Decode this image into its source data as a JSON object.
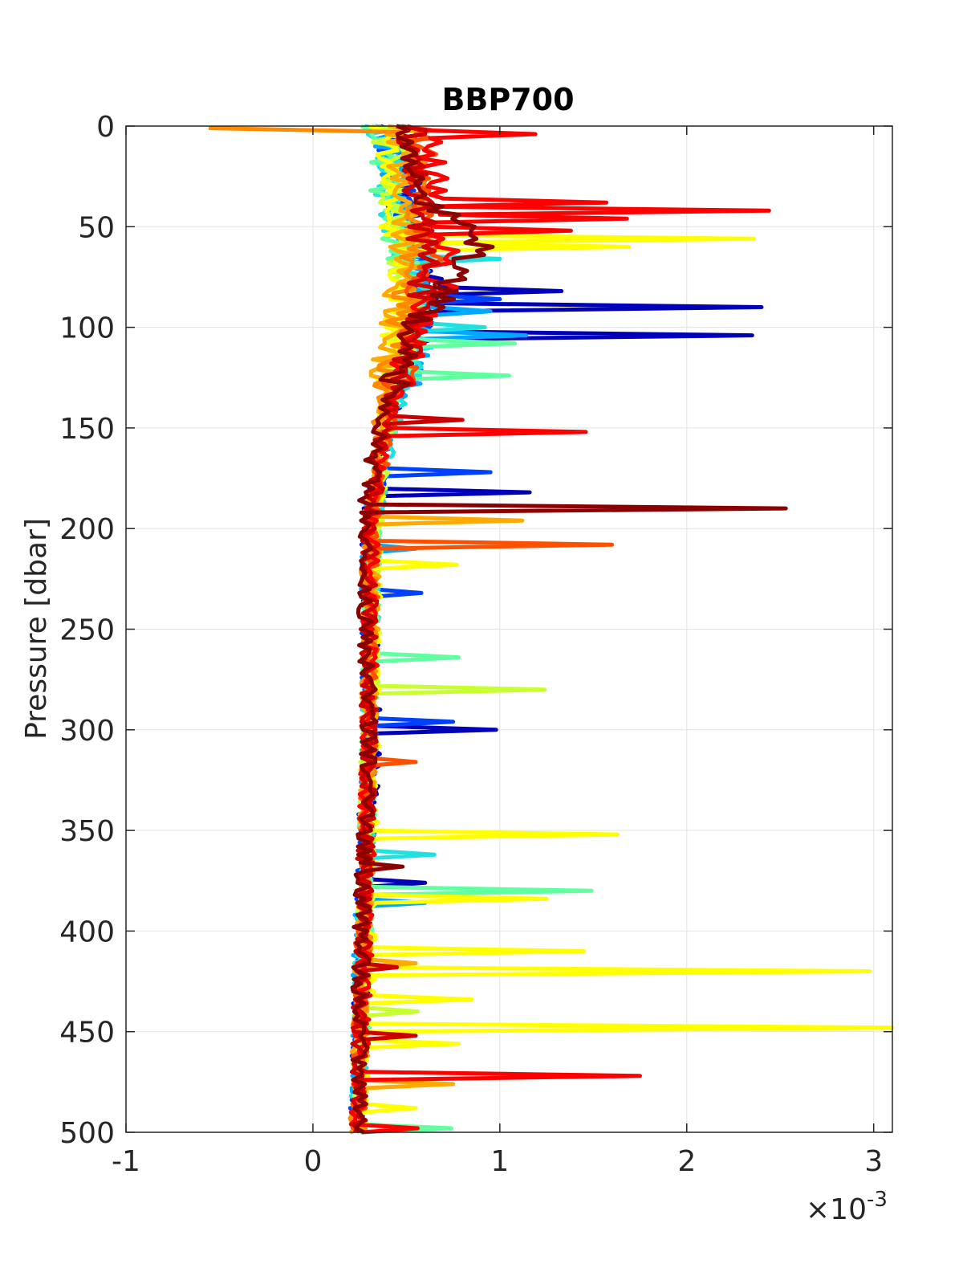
{
  "chart_data": {
    "type": "line",
    "title": "BBP700",
    "xlabel": "",
    "ylabel": "Pressure [dbar]",
    "x_multiplier_label": "×10",
    "x_multiplier_exponent": "-3",
    "xlim": [
      -1,
      3.1
    ],
    "ylim": [
      0,
      500
    ],
    "y_reversed": true,
    "grid": true,
    "xticks": [
      -1,
      0,
      1,
      2,
      3
    ],
    "xtick_labels": [
      "-1",
      "0",
      "1",
      "2",
      "3"
    ],
    "yticks": [
      0,
      50,
      100,
      150,
      200,
      250,
      300,
      350,
      400,
      450,
      500
    ],
    "ytick_labels": [
      "0",
      "50",
      "100",
      "150",
      "200",
      "250",
      "300",
      "350",
      "400",
      "450",
      "500"
    ],
    "depth_step": 2,
    "series": [
      {
        "color": "#0000b8",
        "anchors": [
          [
            0,
            0.45
          ],
          [
            40,
            0.52
          ],
          [
            80,
            0.62
          ],
          [
            100,
            0.6
          ],
          [
            150,
            0.38
          ],
          [
            200,
            0.3
          ],
          [
            300,
            0.32
          ],
          [
            400,
            0.27
          ],
          [
            500,
            0.24
          ]
        ],
        "spikes": [
          [
            82,
            1.33
          ],
          [
            90,
            2.4
          ],
          [
            104,
            2.35
          ],
          [
            182,
            1.16
          ],
          [
            300,
            0.98
          ],
          [
            375,
            0.6
          ]
        ]
      },
      {
        "color": "#0040ff",
        "anchors": [
          [
            0,
            0.42
          ],
          [
            40,
            0.48
          ],
          [
            90,
            0.6
          ],
          [
            120,
            0.45
          ],
          [
            160,
            0.38
          ],
          [
            200,
            0.31
          ],
          [
            300,
            0.3
          ],
          [
            400,
            0.27
          ],
          [
            500,
            0.24
          ]
        ],
        "spikes": [
          [
            86,
            1.0
          ],
          [
            172,
            0.95
          ],
          [
            232,
            0.58
          ],
          [
            296,
            0.75
          ]
        ]
      },
      {
        "color": "#00a8ff",
        "anchors": [
          [
            0,
            0.4
          ],
          [
            40,
            0.46
          ],
          [
            80,
            0.58
          ],
          [
            100,
            0.62
          ],
          [
            150,
            0.4
          ],
          [
            200,
            0.3
          ],
          [
            300,
            0.3
          ],
          [
            400,
            0.26
          ],
          [
            500,
            0.24
          ]
        ],
        "spikes": [
          [
            92,
            0.95
          ],
          [
            104,
            1.14
          ],
          [
            210,
            0.55
          ],
          [
            385,
            0.6
          ]
        ]
      },
      {
        "color": "#20e0e0",
        "anchors": [
          [
            0,
            0.36
          ],
          [
            40,
            0.42
          ],
          [
            80,
            0.55
          ],
          [
            110,
            0.55
          ],
          [
            150,
            0.42
          ],
          [
            200,
            0.32
          ],
          [
            300,
            0.3
          ],
          [
            400,
            0.27
          ],
          [
            500,
            0.24
          ]
        ],
        "spikes": [
          [
            66,
            1.0
          ],
          [
            100,
            0.92
          ],
          [
            362,
            0.65
          ]
        ]
      },
      {
        "color": "#60ffa0",
        "anchors": [
          [
            0,
            0.34
          ],
          [
            40,
            0.4
          ],
          [
            90,
            0.55
          ],
          [
            120,
            0.5
          ],
          [
            160,
            0.38
          ],
          [
            200,
            0.32
          ],
          [
            300,
            0.3
          ],
          [
            400,
            0.28
          ],
          [
            500,
            0.24
          ]
        ],
        "spikes": [
          [
            108,
            1.08
          ],
          [
            124,
            1.05
          ],
          [
            264,
            0.78
          ],
          [
            380,
            1.49
          ],
          [
            498,
            0.74
          ]
        ]
      },
      {
        "color": "#c8ff30",
        "anchors": [
          [
            0,
            0.4
          ],
          [
            40,
            0.45
          ],
          [
            90,
            0.5
          ],
          [
            140,
            0.4
          ],
          [
            200,
            0.33
          ],
          [
            300,
            0.3
          ],
          [
            400,
            0.28
          ],
          [
            500,
            0.24
          ]
        ],
        "spikes": [
          [
            280,
            1.24
          ],
          [
            440,
            0.56
          ]
        ]
      },
      {
        "color": "#ffff00",
        "anchors": [
          [
            0,
            0.38
          ],
          [
            40,
            0.42
          ],
          [
            80,
            0.48
          ],
          [
            140,
            0.4
          ],
          [
            200,
            0.33
          ],
          [
            300,
            0.32
          ],
          [
            400,
            0.3
          ],
          [
            500,
            0.25
          ]
        ],
        "spikes": [
          [
            56,
            2.36
          ],
          [
            60,
            1.69
          ],
          [
            218,
            0.77
          ],
          [
            352,
            1.63
          ],
          [
            384,
            1.25
          ],
          [
            410,
            1.45
          ],
          [
            420,
            2.98
          ],
          [
            434,
            0.85
          ],
          [
            448,
            3.1
          ],
          [
            456,
            0.78
          ],
          [
            488,
            0.55
          ]
        ]
      },
      {
        "color": "#ffaa00",
        "anchors": [
          [
            0,
            0.48
          ],
          [
            40,
            0.5
          ],
          [
            70,
            0.5
          ],
          [
            100,
            0.42
          ],
          [
            140,
            0.38
          ],
          [
            200,
            0.32
          ],
          [
            300,
            0.3
          ],
          [
            400,
            0.27
          ],
          [
            500,
            0.24
          ]
        ],
        "spikes": [
          [
            196,
            1.12
          ],
          [
            416,
            0.55
          ],
          [
            476,
            0.75
          ]
        ]
      },
      {
        "color": "#ff8a00",
        "anchors": [
          [
            1,
            -0.48
          ],
          [
            2,
            0.5
          ],
          [
            40,
            0.55
          ],
          [
            90,
            0.5
          ],
          [
            140,
            0.37
          ],
          [
            200,
            0.3
          ],
          [
            300,
            0.3
          ],
          [
            400,
            0.27
          ],
          [
            500,
            0.24
          ]
        ],
        "spikes": [
          [
            282,
            0.48
          ]
        ]
      },
      {
        "color": "#ff5000",
        "anchors": [
          [
            0,
            0.55
          ],
          [
            30,
            0.6
          ],
          [
            70,
            0.62
          ],
          [
            110,
            0.5
          ],
          [
            150,
            0.4
          ],
          [
            200,
            0.31
          ],
          [
            300,
            0.3
          ],
          [
            400,
            0.27
          ],
          [
            500,
            0.24
          ]
        ],
        "spikes": [
          [
            208,
            1.6
          ],
          [
            316,
            0.55
          ]
        ]
      },
      {
        "color": "#ff0000",
        "anchors": [
          [
            0,
            0.58
          ],
          [
            30,
            0.65
          ],
          [
            60,
            0.7
          ],
          [
            100,
            0.55
          ],
          [
            150,
            0.4
          ],
          [
            200,
            0.31
          ],
          [
            300,
            0.3
          ],
          [
            400,
            0.28
          ],
          [
            500,
            0.24
          ]
        ],
        "spikes": [
          [
            4,
            1.19
          ],
          [
            37,
            1.57
          ],
          [
            42,
            2.44
          ],
          [
            45,
            1.68
          ],
          [
            52,
            1.38
          ],
          [
            80,
            0.77
          ],
          [
            152,
            1.46
          ],
          [
            472,
            1.75
          ],
          [
            498,
            0.56
          ]
        ]
      },
      {
        "color": "#cc0000",
        "anchors": [
          [
            0,
            0.52
          ],
          [
            40,
            0.58
          ],
          [
            80,
            0.58
          ],
          [
            110,
            0.5
          ],
          [
            150,
            0.38
          ],
          [
            200,
            0.3
          ],
          [
            300,
            0.3
          ],
          [
            400,
            0.27
          ],
          [
            500,
            0.24
          ]
        ],
        "spikes": [
          [
            146,
            0.8
          ],
          [
            418,
            0.45
          ],
          [
            452,
            0.55
          ]
        ]
      },
      {
        "color": "#8b0000",
        "anchors": [
          [
            0,
            0.52
          ],
          [
            30,
            0.5
          ],
          [
            58,
            0.9
          ],
          [
            100,
            0.55
          ],
          [
            150,
            0.35
          ],
          [
            200,
            0.27
          ],
          [
            300,
            0.3
          ],
          [
            400,
            0.26
          ],
          [
            500,
            0.24
          ]
        ],
        "spikes": [
          [
            190,
            2.53
          ],
          [
            368,
            0.48
          ]
        ]
      }
    ]
  }
}
